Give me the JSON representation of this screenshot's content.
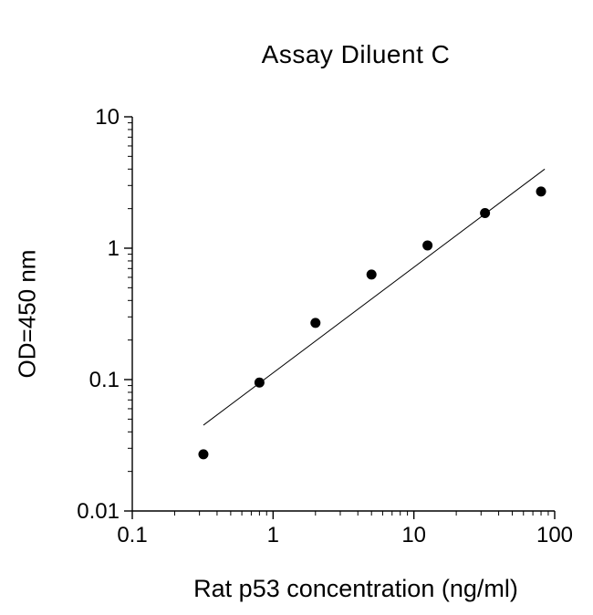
{
  "chart_data": {
    "type": "scatter",
    "title": "Assay Diluent C",
    "xlabel": "Rat p53 concentration (ng/ml)",
    "ylabel": "OD=450 nm",
    "x_scale": "log",
    "y_scale": "log",
    "xlim": [
      0.1,
      100
    ],
    "ylim": [
      0.01,
      10
    ],
    "x_ticks": [
      0.1,
      1,
      10,
      100
    ],
    "x_tick_labels": [
      "0.1",
      "1",
      "10",
      "100"
    ],
    "y_ticks": [
      0.01,
      0.1,
      1,
      10
    ],
    "y_tick_labels": [
      "0.01",
      "0.1",
      "1",
      "10"
    ],
    "grid": false,
    "legend": false,
    "points": [
      {
        "x": 0.32,
        "y": 0.027
      },
      {
        "x": 0.8,
        "y": 0.095
      },
      {
        "x": 2.0,
        "y": 0.27
      },
      {
        "x": 5.0,
        "y": 0.63
      },
      {
        "x": 12.5,
        "y": 1.05
      },
      {
        "x": 32,
        "y": 1.85
      },
      {
        "x": 80,
        "y": 2.7
      }
    ],
    "fit_line": {
      "x1": 0.32,
      "y1": 0.045,
      "x2": 85,
      "y2": 4.0
    },
    "marker": {
      "shape": "circle",
      "color": "#000000",
      "radius_px": 5.5
    },
    "line_color": "#000000",
    "axis_color": "#000000",
    "text_color": "#000000",
    "background": "#ffffff"
  }
}
